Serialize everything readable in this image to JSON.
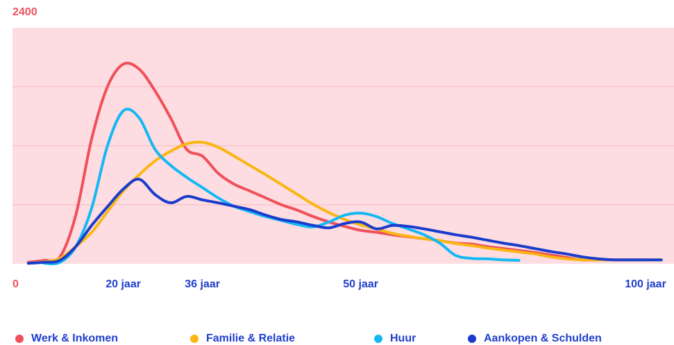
{
  "chart_data": {
    "type": "line",
    "categories": [
      null,
      null,
      null,
      null,
      null,
      null,
      null,
      "20 jaar",
      null,
      null,
      null,
      null,
      "36 jaar",
      null,
      null,
      null,
      null,
      null,
      null,
      null,
      null,
      null,
      "50 jaar",
      null,
      null,
      null,
      null,
      null,
      null,
      null,
      null,
      null,
      null,
      null,
      null,
      null,
      null,
      null,
      null,
      null,
      "100 jaar",
      null
    ],
    "series": [
      {
        "name": "Werk & Inkomen",
        "color": "#f0505a",
        "values": [
          null,
          15,
          35,
          70,
          495,
          1270,
          1800,
          2030,
          1980,
          1760,
          1480,
          1165,
          1095,
          920,
          810,
          740,
          670,
          600,
          545,
          480,
          425,
          380,
          340,
          320,
          295,
          275,
          255,
          235,
          210,
          200,
          175,
          155,
          135,
          115,
          90,
          65,
          40,
          40,
          40,
          40,
          40,
          null
        ]
      },
      {
        "name": "Familie & Relatie",
        "color": "#fbb614",
        "values": [
          null,
          5,
          20,
          55,
          175,
          320,
          530,
          740,
          905,
          1045,
          1145,
          1220,
          1235,
          1185,
          1095,
          1000,
          905,
          805,
          705,
          605,
          520,
          450,
          395,
          355,
          310,
          280,
          255,
          235,
          205,
          185,
          160,
          140,
          120,
          100,
          70,
          50,
          40,
          40,
          40,
          40,
          40,
          40
        ]
      },
      {
        "name": "Huur",
        "color": "#14b8f5",
        "values": [
          null,
          null,
          5,
          15,
          175,
          565,
          1200,
          1555,
          1485,
          1165,
          1000,
          880,
          775,
          670,
          585,
          530,
          480,
          440,
          400,
          375,
          425,
          495,
          515,
          480,
          410,
          355,
          295,
          210,
          85,
          55,
          50,
          40,
          35,
          null,
          null,
          null,
          null,
          null,
          null,
          null,
          null,
          null
        ]
      },
      {
        "name": "Aankopen & Schulden",
        "color": "#1a3ccc",
        "values": [
          null,
          5,
          15,
          35,
          175,
          390,
          580,
          760,
          860,
          705,
          620,
          685,
          650,
          620,
          585,
          550,
          495,
          450,
          425,
          390,
          365,
          410,
          425,
          355,
          390,
          380,
          355,
          325,
          295,
          270,
          240,
          210,
          185,
          155,
          125,
          100,
          70,
          50,
          40,
          40,
          40,
          40
        ]
      }
    ],
    "ylim": [
      0,
      2400
    ],
    "yticks": [
      0,
      600,
      1200,
      1800,
      2400
    ],
    "ytick_labels": "ends",
    "grid": true,
    "background": "#fddde1"
  }
}
